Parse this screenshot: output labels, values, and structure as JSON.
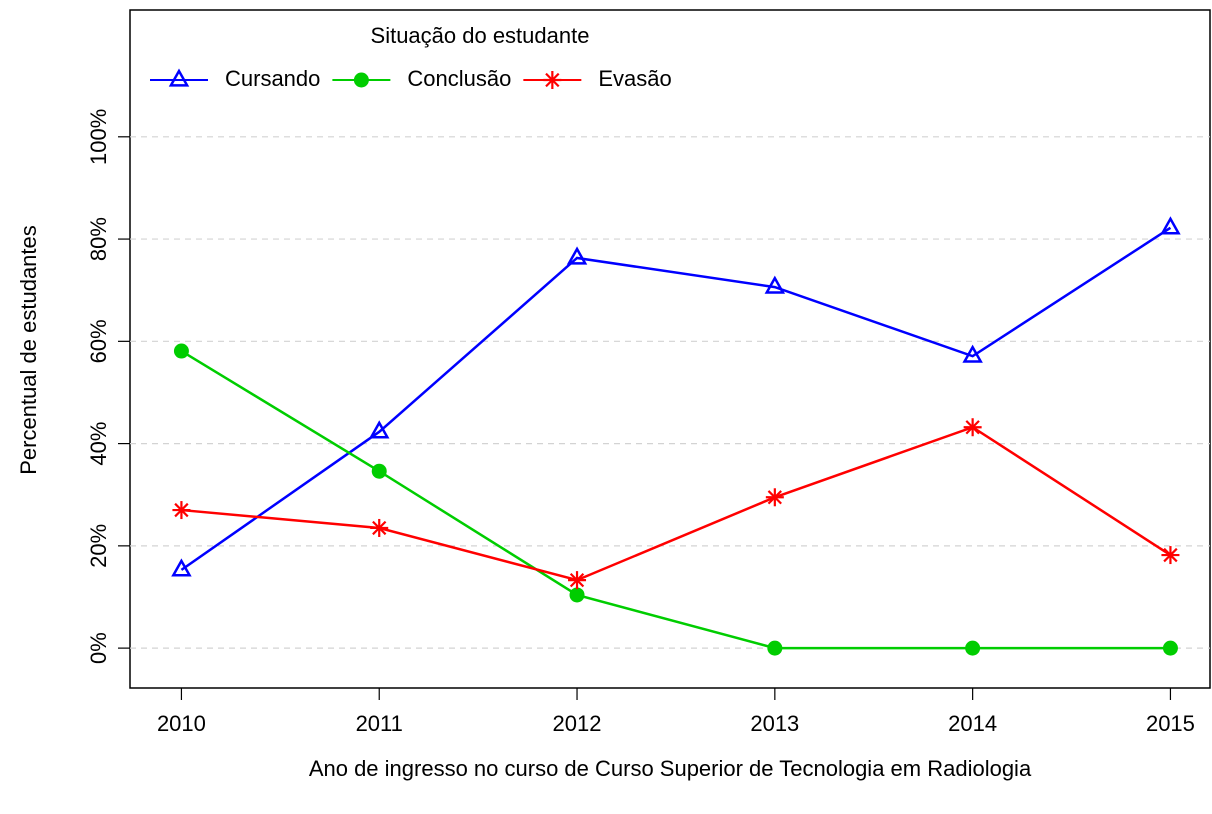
{
  "chart_data": {
    "type": "line",
    "x_label": "Ano de ingresso no curso de Curso Superior de Tecnologia em Radiologia",
    "y_label": "Percentual de estudantes",
    "legend_title": "Situação do estudante",
    "legend_position": "top-left",
    "grid": true,
    "x": [
      2010,
      2011,
      2012,
      2013,
      2014,
      2015
    ],
    "xlim": [
      2009.74,
      2015.2
    ],
    "xticks": [
      2010,
      2011,
      2012,
      2013,
      2014,
      2015
    ],
    "ylim": [
      -7.8,
      124.8
    ],
    "yticks": [
      {
        "value": 0,
        "label": "0%"
      },
      {
        "value": 20,
        "label": "20%"
      },
      {
        "value": 40,
        "label": "40%"
      },
      {
        "value": 60,
        "label": "60%"
      },
      {
        "value": 80,
        "label": "80%"
      },
      {
        "value": 100,
        "label": "100%"
      }
    ],
    "series": [
      {
        "name": "Cursando",
        "color": "#0000ff",
        "marker": "triangle",
        "values": [
          15.3,
          42.3,
          76.3,
          70.6,
          57.1,
          82.2
        ]
      },
      {
        "name": "Conclusão",
        "color": "#00cd00",
        "marker": "circle",
        "values": [
          58.1,
          34.6,
          10.4,
          0,
          0,
          0
        ]
      },
      {
        "name": "Evasão",
        "color": "#ff0000",
        "marker": "asterisk",
        "values": [
          27.0,
          23.5,
          13.3,
          29.5,
          43.2,
          18.2
        ]
      }
    ]
  }
}
